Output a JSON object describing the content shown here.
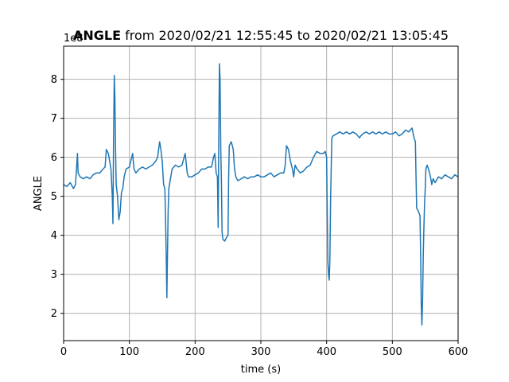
{
  "chart_data": {
    "type": "line",
    "title_bold": "ANGLE",
    "title_rest": " from 2020/02/21 12:55:45 to 2020/02/21 13:05:45",
    "xlabel": "time (s)",
    "ylabel": "ANGLE",
    "y_offset_label": "1e8",
    "xlim": [
      0,
      600
    ],
    "ylim": [
      1.3,
      8.85
    ],
    "x_ticks": [
      {
        "value": 0,
        "label": "0"
      },
      {
        "value": 100,
        "label": "100"
      },
      {
        "value": 200,
        "label": "200"
      },
      {
        "value": 300,
        "label": "300"
      },
      {
        "value": 400,
        "label": "400"
      },
      {
        "value": 500,
        "label": "500"
      },
      {
        "value": 600,
        "label": "600"
      }
    ],
    "y_ticks": [
      {
        "value": 2,
        "label": "2"
      },
      {
        "value": 3,
        "label": "3"
      },
      {
        "value": 4,
        "label": "4"
      },
      {
        "value": 5,
        "label": "5"
      },
      {
        "value": 6,
        "label": "6"
      },
      {
        "value": 7,
        "label": "7"
      },
      {
        "value": 8,
        "label": "8"
      }
    ],
    "grid": true,
    "series": [
      {
        "color": "#1f77b4",
        "points": [
          [
            0,
            5.3
          ],
          [
            5,
            5.25
          ],
          [
            10,
            5.35
          ],
          [
            15,
            5.2
          ],
          [
            18,
            5.3
          ],
          [
            20,
            5.8
          ],
          [
            21,
            6.1
          ],
          [
            22,
            5.6
          ],
          [
            25,
            5.5
          ],
          [
            30,
            5.45
          ],
          [
            35,
            5.5
          ],
          [
            40,
            5.45
          ],
          [
            45,
            5.55
          ],
          [
            50,
            5.6
          ],
          [
            55,
            5.6
          ],
          [
            60,
            5.7
          ],
          [
            63,
            5.75
          ],
          [
            65,
            6.2
          ],
          [
            68,
            6.1
          ],
          [
            70,
            5.9
          ],
          [
            72,
            5.7
          ],
          [
            74,
            5.0
          ],
          [
            75,
            4.3
          ],
          [
            76,
            6.5
          ],
          [
            77,
            8.1
          ],
          [
            78,
            7.5
          ],
          [
            79,
            6.2
          ],
          [
            80,
            5.3
          ],
          [
            82,
            5.0
          ],
          [
            84,
            4.4
          ],
          [
            86,
            4.6
          ],
          [
            88,
            5.1
          ],
          [
            90,
            5.2
          ],
          [
            92,
            5.5
          ],
          [
            95,
            5.7
          ],
          [
            100,
            5.75
          ],
          [
            105,
            6.1
          ],
          [
            107,
            5.7
          ],
          [
            110,
            5.6
          ],
          [
            115,
            5.7
          ],
          [
            120,
            5.75
          ],
          [
            125,
            5.7
          ],
          [
            130,
            5.75
          ],
          [
            135,
            5.8
          ],
          [
            140,
            5.9
          ],
          [
            143,
            6.0
          ],
          [
            146,
            6.4
          ],
          [
            148,
            6.2
          ],
          [
            150,
            5.9
          ],
          [
            152,
            5.3
          ],
          [
            154,
            5.2
          ],
          [
            155,
            4.5
          ],
          [
            156,
            3.5
          ],
          [
            157,
            2.4
          ],
          [
            158,
            3.5
          ],
          [
            159,
            4.6
          ],
          [
            160,
            5.2
          ],
          [
            162,
            5.4
          ],
          [
            165,
            5.7
          ],
          [
            170,
            5.8
          ],
          [
            175,
            5.75
          ],
          [
            180,
            5.8
          ],
          [
            185,
            6.1
          ],
          [
            188,
            5.6
          ],
          [
            190,
            5.5
          ],
          [
            195,
            5.5
          ],
          [
            200,
            5.55
          ],
          [
            205,
            5.6
          ],
          [
            210,
            5.7
          ],
          [
            215,
            5.7
          ],
          [
            220,
            5.75
          ],
          [
            225,
            5.75
          ],
          [
            228,
            6.0
          ],
          [
            230,
            6.1
          ],
          [
            232,
            5.6
          ],
          [
            234,
            5.5
          ],
          [
            235,
            4.2
          ],
          [
            236,
            6.5
          ],
          [
            237,
            8.4
          ],
          [
            238,
            8.0
          ],
          [
            239,
            6.2
          ],
          [
            240,
            5.4
          ],
          [
            241,
            4.1
          ],
          [
            242,
            3.9
          ],
          [
            245,
            3.85
          ],
          [
            248,
            3.95
          ],
          [
            250,
            4.0
          ],
          [
            251,
            5.5
          ],
          [
            252,
            6.3
          ],
          [
            255,
            6.4
          ],
          [
            258,
            6.2
          ],
          [
            260,
            5.7
          ],
          [
            262,
            5.5
          ],
          [
            265,
            5.4
          ],
          [
            270,
            5.45
          ],
          [
            275,
            5.5
          ],
          [
            280,
            5.45
          ],
          [
            285,
            5.5
          ],
          [
            290,
            5.5
          ],
          [
            295,
            5.55
          ],
          [
            300,
            5.5
          ],
          [
            305,
            5.5
          ],
          [
            310,
            5.55
          ],
          [
            315,
            5.6
          ],
          [
            320,
            5.5
          ],
          [
            325,
            5.55
          ],
          [
            330,
            5.6
          ],
          [
            335,
            5.6
          ],
          [
            337,
            5.8
          ],
          [
            339,
            6.3
          ],
          [
            342,
            6.2
          ],
          [
            345,
            5.9
          ],
          [
            348,
            5.7
          ],
          [
            350,
            5.5
          ],
          [
            352,
            5.8
          ],
          [
            355,
            5.7
          ],
          [
            360,
            5.6
          ],
          [
            365,
            5.65
          ],
          [
            370,
            5.75
          ],
          [
            375,
            5.8
          ],
          [
            380,
            6.0
          ],
          [
            385,
            6.15
          ],
          [
            390,
            6.1
          ],
          [
            395,
            6.1
          ],
          [
            398,
            6.15
          ],
          [
            400,
            6.0
          ],
          [
            401,
            4.5
          ],
          [
            402,
            3.3
          ],
          [
            403,
            3.0
          ],
          [
            404,
            2.85
          ],
          [
            405,
            3.4
          ],
          [
            406,
            4.8
          ],
          [
            407,
            5.8
          ],
          [
            408,
            6.5
          ],
          [
            410,
            6.55
          ],
          [
            415,
            6.6
          ],
          [
            420,
            6.65
          ],
          [
            425,
            6.6
          ],
          [
            430,
            6.65
          ],
          [
            435,
            6.6
          ],
          [
            440,
            6.65
          ],
          [
            445,
            6.6
          ],
          [
            450,
            6.5
          ],
          [
            452,
            6.55
          ],
          [
            455,
            6.6
          ],
          [
            460,
            6.65
          ],
          [
            465,
            6.6
          ],
          [
            470,
            6.65
          ],
          [
            475,
            6.6
          ],
          [
            480,
            6.65
          ],
          [
            485,
            6.6
          ],
          [
            490,
            6.65
          ],
          [
            495,
            6.6
          ],
          [
            500,
            6.6
          ],
          [
            505,
            6.65
          ],
          [
            510,
            6.55
          ],
          [
            515,
            6.6
          ],
          [
            520,
            6.7
          ],
          [
            525,
            6.65
          ],
          [
            530,
            6.75
          ],
          [
            533,
            6.5
          ],
          [
            535,
            6.4
          ],
          [
            536,
            5.5
          ],
          [
            537,
            4.7
          ],
          [
            540,
            4.6
          ],
          [
            542,
            4.5
          ],
          [
            543,
            3.5
          ],
          [
            544,
            2.2
          ],
          [
            545,
            1.7
          ],
          [
            546,
            2.4
          ],
          [
            547,
            3.5
          ],
          [
            548,
            4.2
          ],
          [
            549,
            4.8
          ],
          [
            550,
            5.2
          ],
          [
            551,
            5.7
          ],
          [
            553,
            5.8
          ],
          [
            555,
            5.7
          ],
          [
            558,
            5.5
          ],
          [
            560,
            5.3
          ],
          [
            562,
            5.45
          ],
          [
            565,
            5.35
          ],
          [
            570,
            5.5
          ],
          [
            575,
            5.45
          ],
          [
            580,
            5.55
          ],
          [
            585,
            5.5
          ],
          [
            590,
            5.45
          ],
          [
            595,
            5.55
          ],
          [
            600,
            5.5
          ]
        ]
      }
    ]
  }
}
